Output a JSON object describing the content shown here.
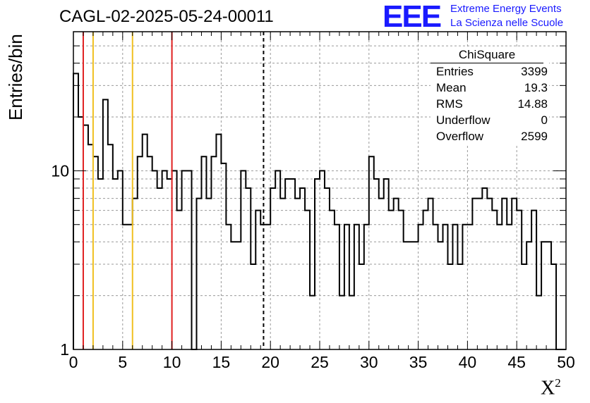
{
  "header": {
    "title": "CAGL-02-2025-05-24-00011",
    "logo_text": "EEE",
    "logo_line1": "Extreme Energy Events",
    "logo_line2": "La Scienza nelle Scuole"
  },
  "stats": {
    "title": "ChiSquare",
    "rows": [
      {
        "key": "Entries",
        "value": "3399"
      },
      {
        "key": "Mean",
        "value": "19.3"
      },
      {
        "key": "RMS",
        "value": "14.88"
      },
      {
        "key": "Underflow",
        "value": "0"
      },
      {
        "key": "Overflow",
        "value": "2599"
      }
    ]
  },
  "chart_data": {
    "type": "bar",
    "style": "step-histogram",
    "xlabel": "X²",
    "ylabel": "Entries/bin",
    "xlim": [
      0,
      50
    ],
    "ylim": [
      1,
      60
    ],
    "log_y": true,
    "grid": true,
    "x_ticks": [
      0,
      5,
      10,
      15,
      20,
      25,
      30,
      35,
      40,
      45,
      50
    ],
    "x_tick_labels": [
      "0",
      "5",
      "10",
      "15",
      "20",
      "25",
      "30",
      "35",
      "40",
      "45",
      "50"
    ],
    "y_ticks": [
      1,
      10
    ],
    "y_tick_labels": [
      "1",
      "10"
    ],
    "bin_width": 0.5,
    "values": [
      35,
      20,
      18,
      14,
      12,
      9,
      25,
      14,
      9,
      10,
      5,
      5,
      7,
      12,
      16,
      12,
      10,
      8,
      10,
      9,
      10,
      6,
      10,
      10,
      1,
      7,
      12,
      7,
      12,
      16,
      11,
      5,
      4,
      4,
      10,
      8,
      3,
      6,
      5,
      5,
      8,
      10,
      7,
      9,
      9,
      7,
      8,
      6,
      2,
      9,
      10,
      8,
      6,
      5,
      2,
      5,
      2,
      5,
      3,
      5,
      12,
      9,
      7,
      9,
      6,
      7,
      6,
      4,
      4,
      4,
      5,
      6,
      7,
      5,
      4,
      5,
      3,
      5,
      3,
      5,
      5,
      7,
      7,
      8,
      7,
      6,
      5,
      7,
      5,
      7,
      6,
      3,
      4,
      6,
      2,
      4,
      4,
      3,
      0,
      0
    ],
    "vertical_lines": [
      {
        "x": 1,
        "color": "#e02020",
        "style": "solid"
      },
      {
        "x": 2,
        "color": "#f0c020",
        "style": "solid"
      },
      {
        "x": 6,
        "color": "#f0c020",
        "style": "solid"
      },
      {
        "x": 10,
        "color": "#e02020",
        "style": "solid"
      },
      {
        "x": 19.3,
        "color": "#000000",
        "style": "dashed"
      }
    ]
  }
}
